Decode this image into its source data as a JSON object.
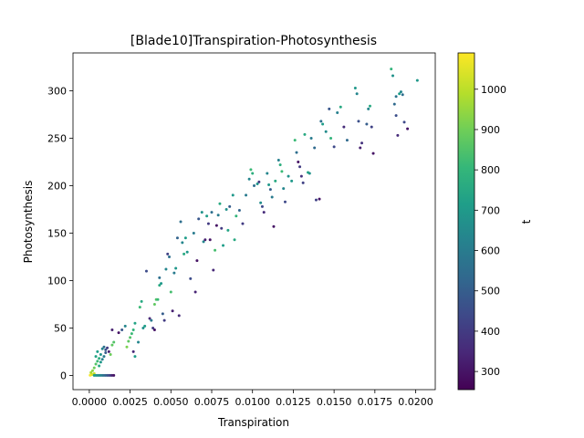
{
  "chart_data": {
    "type": "scatter",
    "title": "[Blade10]Transpiration-Photosynthesis",
    "xlabel": "Transpiration",
    "ylabel": "Photosynthesis",
    "xlim": [
      -0.001,
      0.0212
    ],
    "ylim": [
      -15,
      340
    ],
    "xticks": [
      0.0,
      0.0025,
      0.005,
      0.0075,
      0.01,
      0.0125,
      0.015,
      0.0175,
      0.02
    ],
    "xtick_labels": [
      "0.0000",
      "0.0025",
      "0.0050",
      "0.0075",
      "0.0100",
      "0.0125",
      "0.0150",
      "0.0175",
      "0.0200"
    ],
    "yticks": [
      0,
      50,
      100,
      150,
      200,
      250,
      300
    ],
    "ytick_labels": [
      "0",
      "50",
      "100",
      "150",
      "200",
      "250",
      "300"
    ],
    "grid": false,
    "colorbar": {
      "label": "t",
      "range": [
        255,
        1090
      ],
      "ticks": [
        300,
        400,
        500,
        600,
        700,
        800,
        900,
        1000
      ],
      "tick_labels": [
        "300",
        "400",
        "500",
        "600",
        "700",
        "800",
        "900",
        "1000"
      ],
      "colormap": "viridis",
      "colors": [
        "#440154",
        "#482878",
        "#3e4989",
        "#31688e",
        "#26828e",
        "#1f9e89",
        "#35b779",
        "#6ece58",
        "#b5de2b",
        "#fde725"
      ]
    },
    "points": [
      [
        0.0001,
        0.5,
        1060
      ],
      [
        0.0002,
        1.0,
        1040
      ],
      [
        0.0003,
        2.0,
        1020
      ],
      [
        5e-05,
        0.2,
        1080
      ],
      [
        0.0001,
        3.0,
        980
      ],
      [
        0.0002,
        5.0,
        950
      ],
      [
        0.0003,
        8.0,
        900
      ],
      [
        0.0004,
        12.0,
        860
      ],
      [
        0.0005,
        15.0,
        820
      ],
      [
        0.0006,
        18.0,
        780
      ],
      [
        0.0004,
        20.0,
        740
      ],
      [
        0.0005,
        25.0,
        720
      ],
      [
        0.0007,
        22.0,
        680
      ],
      [
        0.0008,
        28.0,
        640
      ],
      [
        0.0009,
        30.0,
        560
      ],
      [
        0.001,
        27.0,
        480
      ],
      [
        0.0011,
        29.0,
        400
      ],
      [
        0.0012,
        25.0,
        330
      ],
      [
        0.0006,
        10.0,
        760
      ],
      [
        0.0007,
        14.0,
        700
      ],
      [
        0.0008,
        17.0,
        620
      ],
      [
        0.0003,
        0.0,
        720
      ],
      [
        0.0004,
        0.0,
        700
      ],
      [
        0.0005,
        0.0,
        680
      ],
      [
        0.0006,
        0.0,
        660
      ],
      [
        0.0007,
        0.0,
        640
      ],
      [
        0.0008,
        0.0,
        600
      ],
      [
        0.0009,
        0.0,
        560
      ],
      [
        0.001,
        0.0,
        520
      ],
      [
        0.0011,
        0.0,
        480
      ],
      [
        0.0012,
        0.0,
        440
      ],
      [
        0.0013,
        0.0,
        400
      ],
      [
        0.0014,
        0.0,
        330
      ],
      [
        0.0015,
        0.0,
        300
      ],
      [
        0.0009,
        20.0,
        600
      ],
      [
        0.001,
        24.0,
        500
      ],
      [
        0.0013,
        22.0,
        900
      ],
      [
        0.0014,
        32.0,
        880
      ],
      [
        0.0015,
        35.0,
        860
      ],
      [
        0.0014,
        48.0,
        330
      ],
      [
        0.0018,
        45.0,
        300
      ],
      [
        0.002,
        48.0,
        480
      ],
      [
        0.0022,
        52.0,
        640
      ],
      [
        0.0023,
        30.0,
        920
      ],
      [
        0.0024,
        36.0,
        880
      ],
      [
        0.0025,
        40.0,
        860
      ],
      [
        0.0026,
        44.0,
        820
      ],
      [
        0.0027,
        48.0,
        800
      ],
      [
        0.0028,
        55.0,
        740
      ],
      [
        0.0027,
        25.0,
        350
      ],
      [
        0.0028,
        20.0,
        720
      ],
      [
        0.003,
        35.0,
        640
      ],
      [
        0.0031,
        72.0,
        820
      ],
      [
        0.0032,
        78.0,
        760
      ],
      [
        0.0033,
        50.0,
        680
      ],
      [
        0.0034,
        52.0,
        720
      ],
      [
        0.0035,
        110.0,
        450
      ],
      [
        0.0037,
        60.0,
        350
      ],
      [
        0.0038,
        58.0,
        600
      ],
      [
        0.0039,
        50.0,
        400
      ],
      [
        0.004,
        48.0,
        300
      ],
      [
        0.004,
        75.0,
        880
      ],
      [
        0.0041,
        80.0,
        860
      ],
      [
        0.0042,
        80.0,
        820
      ],
      [
        0.0043,
        95.0,
        760
      ],
      [
        0.0043,
        103.0,
        560
      ],
      [
        0.0044,
        97.0,
        700
      ],
      [
        0.0045,
        65.0,
        500
      ],
      [
        0.0046,
        58.0,
        400
      ],
      [
        0.0047,
        112.0,
        640
      ],
      [
        0.0048,
        128.0,
        420
      ],
      [
        0.0049,
        125.0,
        560
      ],
      [
        0.005,
        88.0,
        840
      ],
      [
        0.0051,
        68.0,
        330
      ],
      [
        0.0052,
        108.0,
        600
      ],
      [
        0.0053,
        113.0,
        700
      ],
      [
        0.0054,
        145.0,
        520
      ],
      [
        0.0055,
        63.0,
        360
      ],
      [
        0.0056,
        162.0,
        560
      ],
      [
        0.0057,
        140.0,
        640
      ],
      [
        0.0058,
        128.0,
        760
      ],
      [
        0.0059,
        145.0,
        720
      ],
      [
        0.006,
        130.0,
        700
      ],
      [
        0.0062,
        102.0,
        450
      ],
      [
        0.0064,
        150.0,
        600
      ],
      [
        0.0065,
        88.0,
        340
      ],
      [
        0.0066,
        121.0,
        300
      ],
      [
        0.0067,
        165.0,
        480
      ],
      [
        0.0069,
        172.0,
        680
      ],
      [
        0.007,
        141.0,
        640
      ],
      [
        0.0071,
        143.0,
        330
      ],
      [
        0.0072,
        168.0,
        720
      ],
      [
        0.0073,
        160.0,
        400
      ],
      [
        0.0074,
        143.0,
        300
      ],
      [
        0.0075,
        172.0,
        560
      ],
      [
        0.0076,
        111.0,
        350
      ],
      [
        0.0077,
        132.0,
        840
      ],
      [
        0.0078,
        158.0,
        300
      ],
      [
        0.0079,
        169.0,
        600
      ],
      [
        0.008,
        181.0,
        760
      ],
      [
        0.0081,
        155.0,
        400
      ],
      [
        0.0082,
        137.0,
        720
      ],
      [
        0.0084,
        175.0,
        680
      ],
      [
        0.0085,
        153.0,
        740
      ],
      [
        0.0086,
        178.0,
        500
      ],
      [
        0.0088,
        190.0,
        700
      ],
      [
        0.0089,
        143.0,
        760
      ],
      [
        0.009,
        168.0,
        800
      ],
      [
        0.0092,
        174.0,
        520
      ],
      [
        0.0094,
        160.0,
        400
      ],
      [
        0.0096,
        190.0,
        600
      ],
      [
        0.0098,
        207.0,
        640
      ],
      [
        0.0099,
        217.0,
        820
      ],
      [
        0.01,
        213.0,
        780
      ],
      [
        0.0101,
        200.0,
        560
      ],
      [
        0.0103,
        202.0,
        700
      ],
      [
        0.0104,
        204.0,
        400
      ],
      [
        0.0105,
        182.0,
        660
      ],
      [
        0.0106,
        178.0,
        440
      ],
      [
        0.0107,
        172.0,
        360
      ],
      [
        0.0109,
        213.0,
        640
      ],
      [
        0.011,
        201.0,
        700
      ],
      [
        0.0111,
        196.0,
        500
      ],
      [
        0.0112,
        188.0,
        600
      ],
      [
        0.0113,
        157.0,
        300
      ],
      [
        0.0114,
        205.0,
        760
      ],
      [
        0.0116,
        227.0,
        620
      ],
      [
        0.0117,
        222.0,
        780
      ],
      [
        0.0118,
        215.0,
        820
      ],
      [
        0.0119,
        197.0,
        640
      ],
      [
        0.012,
        183.0,
        440
      ],
      [
        0.0122,
        210.0,
        680
      ],
      [
        0.0124,
        205.0,
        700
      ],
      [
        0.0126,
        248.0,
        820
      ],
      [
        0.0127,
        235.0,
        560
      ],
      [
        0.0128,
        225.0,
        300
      ],
      [
        0.0129,
        220.0,
        400
      ],
      [
        0.013,
        210.0,
        380
      ],
      [
        0.0131,
        203.0,
        420
      ],
      [
        0.0132,
        254.0,
        760
      ],
      [
        0.0134,
        214.0,
        740
      ],
      [
        0.0135,
        213.0,
        680
      ],
      [
        0.0136,
        250.0,
        600
      ],
      [
        0.0138,
        240.0,
        540
      ],
      [
        0.0139,
        185.0,
        420
      ],
      [
        0.0141,
        186.0,
        300
      ],
      [
        0.0142,
        268.0,
        560
      ],
      [
        0.0143,
        265.0,
        720
      ],
      [
        0.0145,
        257.0,
        660
      ],
      [
        0.0147,
        281.0,
        480
      ],
      [
        0.0148,
        250.0,
        800
      ],
      [
        0.015,
        241.0,
        440
      ],
      [
        0.0152,
        277.0,
        620
      ],
      [
        0.0154,
        283.0,
        760
      ],
      [
        0.0156,
        262.0,
        360
      ],
      [
        0.0158,
        248.0,
        540
      ],
      [
        0.0163,
        303.0,
        700
      ],
      [
        0.0164,
        297.0,
        640
      ],
      [
        0.0165,
        268.0,
        460
      ],
      [
        0.0166,
        240.0,
        330
      ],
      [
        0.0167,
        245.0,
        380
      ],
      [
        0.017,
        265.0,
        500
      ],
      [
        0.0171,
        281.0,
        640
      ],
      [
        0.0172,
        284.0,
        760
      ],
      [
        0.0173,
        262.0,
        420
      ],
      [
        0.0174,
        234.0,
        300
      ],
      [
        0.0185,
        323.0,
        800
      ],
      [
        0.0186,
        316.0,
        680
      ],
      [
        0.0187,
        286.0,
        540
      ],
      [
        0.0188,
        274.0,
        460
      ],
      [
        0.0189,
        253.0,
        360
      ],
      [
        0.019,
        297.0,
        720
      ],
      [
        0.0191,
        299.0,
        640
      ],
      [
        0.0192,
        296.0,
        560
      ],
      [
        0.0193,
        267.0,
        440
      ],
      [
        0.0195,
        260.0,
        300
      ],
      [
        0.0201,
        311.0,
        700
      ],
      [
        0.0188,
        294.0,
        580
      ]
    ]
  }
}
